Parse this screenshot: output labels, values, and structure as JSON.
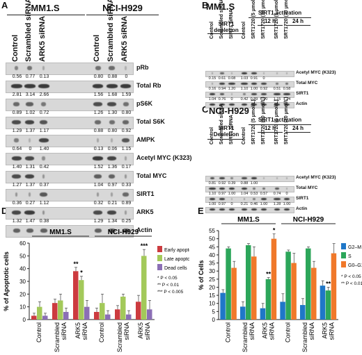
{
  "panelA": {
    "letter": "A",
    "groups": [
      "MM1.S",
      "NCI-H929"
    ],
    "lanes": [
      "Control",
      "Scrambled siRNA",
      "ARK5 siRNA",
      "Control",
      "Scrambled siRNA",
      "ARK5 siRNA"
    ],
    "rows": [
      {
        "label": "pRb",
        "values": [
          "0.56",
          "0.77",
          "0.13",
          "0.80",
          "0.88",
          "0"
        ]
      },
      {
        "label": "Total Rb",
        "values": [
          "2.81",
          "3.14",
          "2.66",
          "1.56",
          "1.68",
          "1.59"
        ]
      },
      {
        "label": "pS6K",
        "values": [
          "0.89",
          "1.02",
          "0.72",
          "1.26",
          "1.30",
          "0.80"
        ]
      },
      {
        "label": "Total S6K",
        "values": [
          "1.29",
          "1.37",
          "1.17",
          "0.88",
          "0.80",
          "0.92"
        ]
      },
      {
        "label": "AMPK",
        "values": [
          "0.64",
          "0",
          "1.40",
          "0.13",
          "0.06",
          "1.15"
        ]
      },
      {
        "label": "Acetyl MYC (K323)",
        "values": [
          "1.40",
          "1.31",
          "0.42",
          "1.52",
          "1.36",
          "0.17"
        ]
      },
      {
        "label": "Total MYC",
        "values": [
          "1.27",
          "1.37",
          "0.37",
          "1.04",
          "0.97",
          "0.33"
        ]
      },
      {
        "label": "SIRT1",
        "values": [
          "0.36",
          "0.27",
          "1.12",
          "0.32",
          "0.21",
          "0.89"
        ]
      },
      {
        "label": "ARK5",
        "values": [
          "1.32",
          "1.47",
          "0.38",
          "1.29",
          "1.34",
          "0.25"
        ]
      },
      {
        "label": "Actin",
        "values": []
      }
    ]
  },
  "panelB": {
    "letter": "B",
    "cell": "MM1.S",
    "depletion": "SIRT1 depletion",
    "activation": "SIRT1 activation",
    "t12": "12 h",
    "t24": "24 h",
    "lanes": [
      "Control",
      "Scrambled siRNA",
      "SIRT1 siRNA",
      "Control",
      "SRT1720 (5 µmol/L)",
      "SRT1720 (10 µmol/L)",
      "SRT1720 (5 µmol/L)",
      "SRT1720 (10 µmol/L)"
    ],
    "rows": [
      {
        "label": "Acetyl MYC (K323)",
        "values": [
          "0.15",
          "0.61",
          "0.08",
          "1.03",
          "0.91",
          "0",
          "",
          ""
        ]
      },
      {
        "label": "Total MYC",
        "values": [
          "0.16",
          "0.94",
          "1.20",
          "1.10",
          "1.00",
          "0.92",
          "0.51",
          "0.58"
        ]
      },
      {
        "label": "SIRT1",
        "values": [
          "1.04",
          "0.76",
          "0",
          "0.42",
          "0.89",
          "0.90",
          "1.15",
          "1.24"
        ]
      },
      {
        "label": "Actin",
        "values": []
      }
    ]
  },
  "panelC": {
    "letter": "C",
    "cell": "NCI-H929",
    "depletion": "SIRT1 Depletion",
    "activation": "SIRT1 activation",
    "t12": "12 h",
    "t24": "24 h",
    "lanes": [
      "Control",
      "Scrambled siRNA",
      "SIRT1 siRNA",
      "Control",
      "SRT1720 (5 µmol/L)",
      "SRT1720 (10 µmol/L)",
      "SRT1720 (5 µmol/L)",
      "SRT1720 (10 µmol/L)"
    ],
    "rows": [
      {
        "label": "Acetyl MYC (K323)",
        "values": [
          "0.81",
          "0.92",
          "0.39",
          "0.88",
          "1.00",
          "",
          "",
          ""
        ]
      },
      {
        "label": "Total MYC",
        "values": [
          "1.10",
          "0.97",
          "1.00",
          "1.04",
          "0.53",
          "0.57",
          "0.74",
          "0"
        ]
      },
      {
        "label": "SIRT1",
        "values": [
          "1.00",
          "0.97",
          "0",
          "0.21",
          "0.46",
          "1.00",
          "1.28",
          "1.00"
        ]
      },
      {
        "label": "Actin",
        "values": []
      }
    ]
  },
  "panelD": {
    "letter": "D",
    "ylabel": "% of Apoptotic cells",
    "groups": [
      "MM1.S",
      "NCI-H929"
    ],
    "legend_sig": [
      "* P < 0.05",
      "** P < 0.01",
      "*** P < 0.005"
    ],
    "chart_data": {
      "type": "bar",
      "categories": [
        "Control",
        "Scrambled siRNA",
        "ARK5 siRNA",
        "Control",
        "Scrambled siRNA",
        "ARK5 siRNA"
      ],
      "series": [
        {
          "name": "Early apoptotic",
          "color": "#cc3b3f",
          "values": [
            3,
            13,
            38,
            6,
            8,
            14
          ],
          "errors": [
            2,
            3,
            3,
            3,
            3,
            5
          ]
        },
        {
          "name": "Late apoptotic",
          "color": "#a3c95a",
          "values": [
            10,
            15,
            31,
            13,
            18,
            50
          ],
          "errors": [
            4,
            5,
            3,
            7,
            2,
            5
          ]
        },
        {
          "name": "Dead cells",
          "color": "#8b6fb5",
          "values": [
            3,
            6,
            10,
            4,
            4,
            8
          ],
          "errors": [
            2,
            3,
            5,
            3,
            3,
            7
          ]
        }
      ],
      "stars": [
        {
          "cat": 2,
          "series": 0,
          "text": "**"
        },
        {
          "cat": 2,
          "series": 1,
          "text": "*"
        },
        {
          "cat": 5,
          "series": 1,
          "text": "***"
        }
      ],
      "ylim": [
        0,
        60
      ],
      "yticks": [
        0,
        10,
        20,
        30,
        40,
        50,
        60
      ]
    }
  },
  "panelE": {
    "letter": "E",
    "ylabel": "% of Cells",
    "groups": [
      "MM1.S",
      "NCI-H929"
    ],
    "legend_sig": [
      "* P < 0.05",
      "** P < 0.01"
    ],
    "chart_data": {
      "type": "bar",
      "categories": [
        "Control",
        "Scrambled siRNA",
        "ARK5 siRNA",
        "Control",
        "Scrambled siRNA",
        "ARK5 siRNA"
      ],
      "series": [
        {
          "name": "G2–M",
          "color": "#1f77c8",
          "values": [
            16.5,
            8,
            7,
            11,
            9,
            21
          ],
          "errors": [
            2,
            3,
            3,
            5,
            4,
            3
          ]
        },
        {
          "name": "S",
          "color": "#2ca65a",
          "values": [
            44,
            46,
            25,
            42,
            44,
            18
          ],
          "errors": [
            1,
            1,
            1,
            1,
            1,
            2
          ]
        },
        {
          "name": "G0–G1",
          "color": "#f0782a",
          "values": [
            32,
            39,
            50,
            35,
            32,
            41
          ],
          "errors": [
            4,
            6,
            3,
            6,
            4,
            6
          ]
        }
      ],
      "stars": [
        {
          "cat": 2,
          "series": 2,
          "text": "*"
        },
        {
          "cat": 2,
          "series": 1,
          "text": "**"
        },
        {
          "cat": 5,
          "series": 1,
          "text": "**"
        }
      ],
      "ylim": [
        0,
        55
      ],
      "yticks": [
        0,
        5,
        10,
        15,
        20,
        25,
        30,
        35,
        40,
        45,
        50,
        55
      ]
    }
  }
}
